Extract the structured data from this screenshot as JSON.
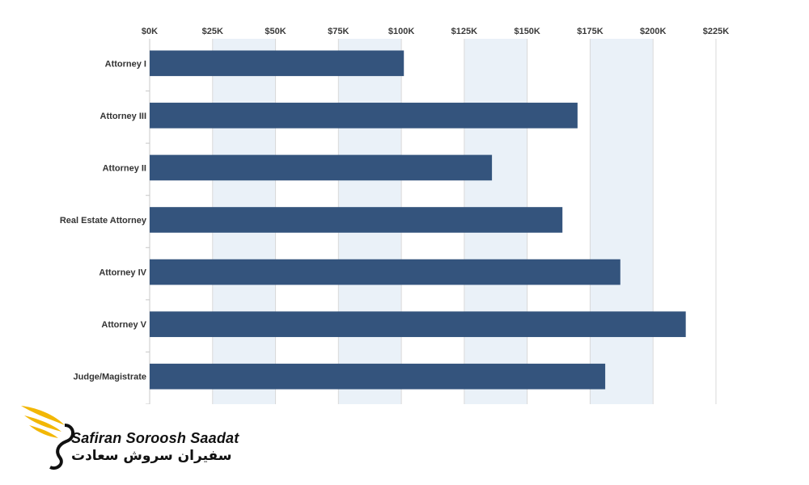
{
  "chart_data": {
    "type": "bar",
    "orientation": "horizontal",
    "categories": [
      "Attorney I",
      "Attorney III",
      "Attorney II",
      "Real Estate Attorney",
      "Attorney IV",
      "Attorney V",
      "Judge/Magistrate"
    ],
    "values": [
      101000,
      170000,
      136000,
      164000,
      187000,
      213000,
      181000
    ],
    "xlim": [
      0,
      225000
    ],
    "ticks": [
      0,
      25000,
      50000,
      75000,
      100000,
      125000,
      150000,
      175000,
      200000,
      225000
    ],
    "tick_labels": [
      "$0K",
      "$25K",
      "$50K",
      "$75K",
      "$100K",
      "$125K",
      "$150K",
      "$175K",
      "$200K",
      "$225K"
    ],
    "axis_position": "top",
    "grid": true,
    "bar_color": "#34547d",
    "band_color": "#eaf1f8",
    "grid_color": "#d9d9d9"
  },
  "logo": {
    "name_en": "Safiran Soroosh Saadat",
    "name_fa": "سفیران سروش سعادت",
    "accent_color": "#f2b705",
    "mark_color": "#111111"
  }
}
